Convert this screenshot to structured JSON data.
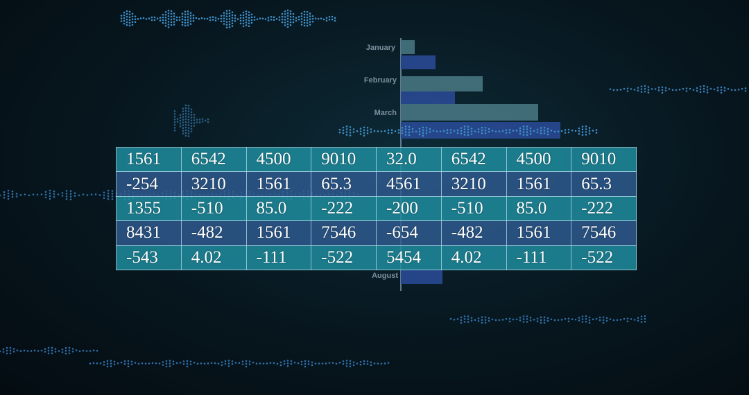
{
  "background_chart": {
    "months": [
      "January",
      "February",
      "March",
      "August"
    ]
  },
  "table": {
    "rows": [
      [
        "1561",
        "6542",
        "4500",
        "9010",
        "32.0",
        "6542",
        "4500",
        "9010"
      ],
      [
        "-254",
        "3210",
        "1561",
        "65.3",
        "4561",
        "3210",
        "1561",
        "65.3"
      ],
      [
        "1355",
        "-510",
        "85.0",
        "-222",
        "-200",
        "-510",
        "85.0",
        "-222"
      ],
      [
        "8431",
        "-482",
        "1561",
        "7546",
        "-654",
        "-482",
        "1561",
        "7546"
      ],
      [
        "-543",
        "4.02",
        "-111",
        "-522",
        "5454",
        "4.02",
        "-111",
        "-522"
      ]
    ]
  }
}
